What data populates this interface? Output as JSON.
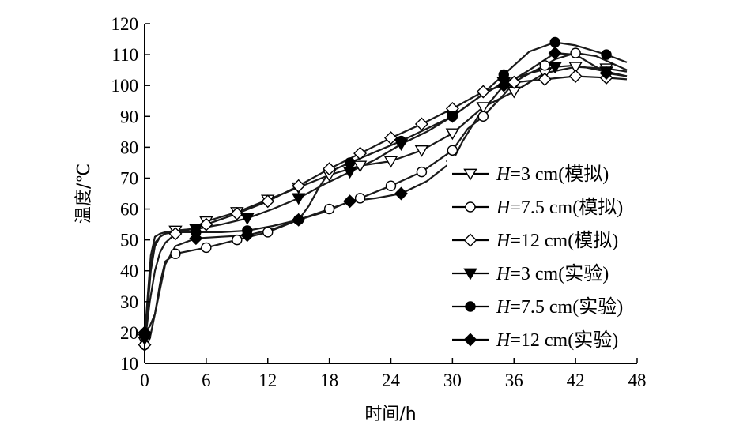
{
  "chart_data": {
    "type": "line",
    "xlabel": "时间/h",
    "ylabel": "温度/℃",
    "xlim": [
      0,
      48
    ],
    "ylim": [
      10,
      120
    ],
    "xticks": [
      0,
      6,
      12,
      18,
      24,
      30,
      36,
      42,
      48
    ],
    "yticks": [
      10,
      20,
      30,
      40,
      50,
      60,
      70,
      80,
      90,
      100,
      110,
      120
    ],
    "grid": false,
    "legend_position": "right",
    "series": [
      {
        "name": "H=3 cm(模拟)",
        "legend_var": "H",
        "legend_rest": "=3 cm(模拟)",
        "marker": "triangle-down-open",
        "x": [
          0,
          0.3,
          0.6,
          1,
          1.5,
          2,
          3,
          4.5,
          6,
          9,
          12,
          15,
          18,
          21,
          24,
          27,
          30,
          33,
          36,
          39,
          42,
          45,
          47
        ],
        "y": [
          17,
          28,
          40,
          48,
          51,
          52,
          53,
          53.5,
          56,
          59,
          63,
          67,
          71,
          74,
          75.5,
          79,
          84.5,
          93,
          98,
          104,
          106,
          105.5,
          104.5
        ],
        "marker_x": [
          0,
          3,
          6,
          9,
          12,
          15,
          18,
          21,
          24,
          27,
          30,
          33,
          36,
          39,
          42,
          45
        ],
        "marker_y": [
          17,
          53,
          56,
          59,
          63,
          67,
          71,
          74,
          75.5,
          79,
          84.5,
          93,
          98,
          104,
          106,
          105.5
        ]
      },
      {
        "name": "H=7.5 cm(模拟)",
        "legend_var": "H",
        "legend_rest": "=7.5 cm(模拟)",
        "marker": "circle-open",
        "x": [
          0,
          0.5,
          1,
          1.5,
          2,
          3,
          6,
          9,
          12,
          15,
          18,
          21,
          24,
          27,
          30,
          31.5,
          33,
          35,
          36,
          37,
          39,
          40,
          42,
          44,
          47
        ],
        "y": [
          16,
          18,
          26,
          36,
          43,
          45.5,
          47.5,
          50,
          52.5,
          56.5,
          60,
          63.5,
          67.5,
          72,
          79,
          86,
          90,
          97,
          101,
          103,
          106.5,
          108.5,
          110.5,
          109.5,
          105
        ],
        "marker_x": [
          0,
          3,
          6,
          9,
          12,
          15,
          18,
          21,
          24,
          27,
          30,
          33,
          36,
          39,
          42
        ],
        "marker_y": [
          16,
          45.5,
          47.5,
          50,
          52.5,
          56.5,
          60,
          63.5,
          67.5,
          72,
          79,
          90,
          101,
          106.5,
          110.5
        ]
      },
      {
        "name": "H=12 cm(模拟)",
        "legend_var": "H",
        "legend_rest": "=12 cm(模拟)",
        "marker": "diamond-open",
        "x": [
          0,
          0.5,
          1,
          1.5,
          2,
          3,
          6,
          9,
          12,
          15,
          18,
          21,
          24,
          27,
          30,
          33,
          36,
          39,
          42,
          45,
          47
        ],
        "y": [
          16,
          30,
          40,
          46,
          49,
          52,
          55,
          58.5,
          62.5,
          67.5,
          73,
          78,
          83,
          87.5,
          92.5,
          98,
          101,
          102,
          103,
          102.5,
          102
        ],
        "marker_x": [
          0,
          3,
          6,
          9,
          12,
          15,
          18,
          21,
          24,
          27,
          30,
          33,
          36,
          39,
          42,
          45
        ],
        "marker_y": [
          16,
          52,
          55,
          58.5,
          62.5,
          67.5,
          73,
          78,
          83,
          87.5,
          92.5,
          98,
          101,
          102,
          103,
          102.5
        ]
      },
      {
        "name": "H=3 cm(实验)",
        "legend_var": "H",
        "legend_rest": "=3 cm(实验)",
        "marker": "triangle-down-filled",
        "x": [
          0,
          0.3,
          0.6,
          1,
          1.5,
          2,
          3,
          5,
          7.5,
          10,
          12.5,
          15,
          17.5,
          20,
          22.5,
          25,
          27.5,
          30,
          32.5,
          35,
          37.5,
          40,
          42,
          45,
          47
        ],
        "y": [
          18,
          32,
          45,
          51,
          52,
          52.5,
          53,
          53.5,
          55,
          57,
          60,
          63.5,
          68,
          72,
          76,
          81,
          85,
          90,
          96,
          101,
          104,
          106,
          106.5,
          104.5,
          103
        ],
        "marker_x": [
          0,
          5,
          10,
          15,
          20,
          25,
          30,
          35,
          40,
          45
        ],
        "marker_y": [
          18,
          53.5,
          57,
          63.5,
          72,
          81,
          90,
          101,
          106,
          104.5
        ]
      },
      {
        "name": "H=7.5 cm(实验)",
        "legend_var": "H",
        "legend_rest": "=7.5 cm(实验)",
        "marker": "circle-filled",
        "x": [
          0,
          0.3,
          0.6,
          1,
          1.5,
          2,
          3,
          5,
          7.5,
          10,
          12.5,
          15,
          16,
          17,
          18,
          20,
          22.5,
          25,
          27.5,
          30,
          32.5,
          35,
          37.5,
          40,
          42,
          45,
          47
        ],
        "y": [
          19,
          30,
          42,
          49,
          51,
          52,
          52.5,
          52.5,
          52.5,
          53,
          54.5,
          56.5,
          61,
          67,
          72,
          75,
          78.5,
          82,
          86,
          90,
          96,
          103.5,
          111,
          114,
          113,
          110,
          107.5
        ],
        "marker_x": [
          0,
          5,
          10,
          15,
          20,
          25,
          30,
          35,
          40,
          45
        ],
        "marker_y": [
          19,
          52.5,
          53,
          56.5,
          75,
          82,
          90,
          103.5,
          114,
          110
        ]
      },
      {
        "name": "H=12 cm(实验)",
        "legend_var": "H",
        "legend_rest": "=12 cm(实验)",
        "marker": "diamond-filled",
        "x": [
          0,
          0.5,
          1,
          1.5,
          2,
          3,
          5,
          7.5,
          10,
          12.5,
          15,
          17.5,
          20,
          22.5,
          25,
          27.5,
          30,
          31,
          32.5,
          35,
          37.5,
          40,
          42,
          45,
          47
        ],
        "y": [
          20,
          22,
          26,
          34,
          42,
          48,
          50.5,
          51,
          51.5,
          53.5,
          56.5,
          59,
          62.5,
          63.5,
          65,
          69,
          75.5,
          82,
          90,
          100,
          105,
          110.5,
          110,
          104,
          103
        ],
        "marker_x": [
          0,
          5,
          10,
          15,
          20,
          25,
          30,
          35,
          40,
          45
        ],
        "marker_y": [
          20,
          50.5,
          51.5,
          56.5,
          62.5,
          65,
          75.5,
          100,
          110.5,
          104
        ]
      }
    ]
  }
}
